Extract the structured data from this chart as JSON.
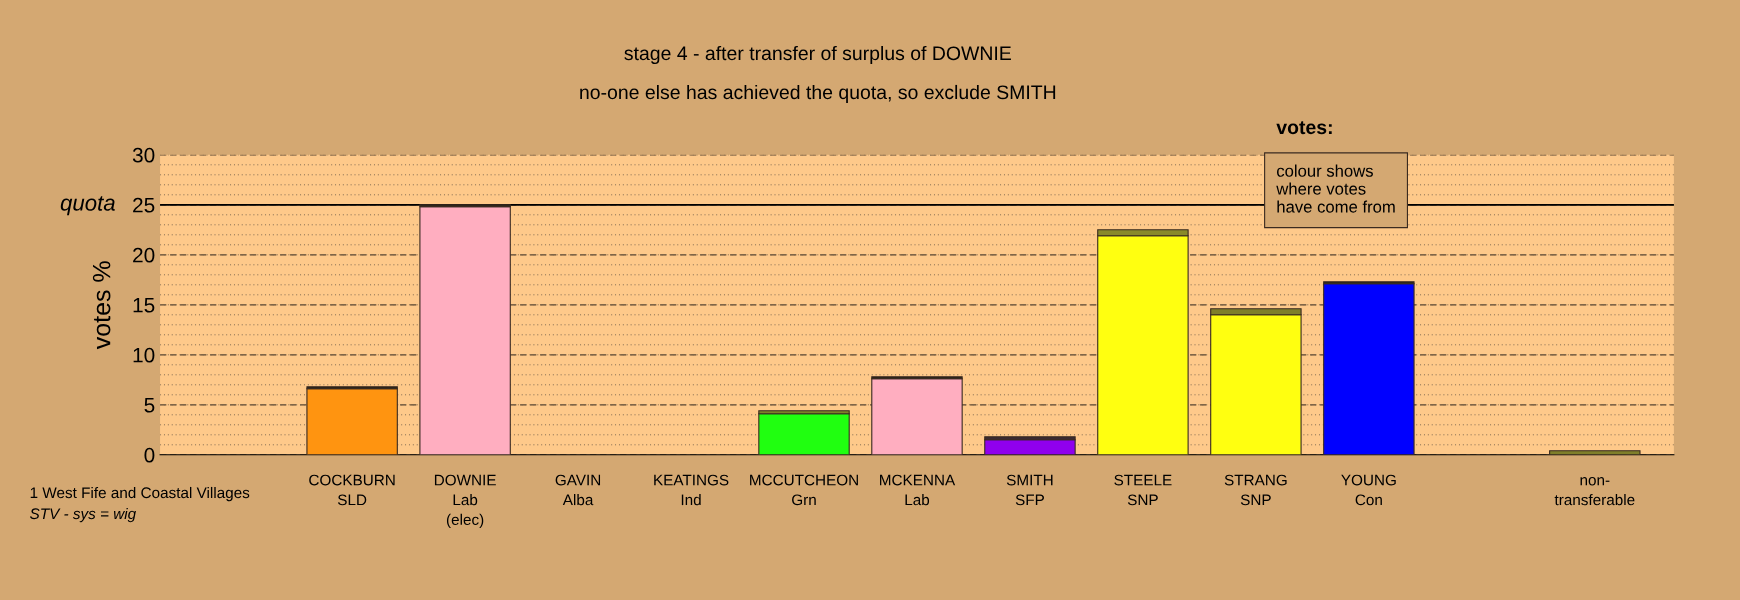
{
  "chart_data": {
    "type": "bar",
    "stacked": true,
    "title": "stage 4 - after transfer of surplus of DOWNIE",
    "subtitle": "no-one else has achieved the quota, so exclude SMITH",
    "ylabel": "votes %",
    "categories": [
      "COCKBURN\nSLD",
      "DOWNIE\nLab\n(elec)",
      "GAVIN\nAlba",
      "KEATINGS\nInd",
      "MCCUTCHEON\nGrn",
      "MCKENNA\nLab",
      "SMITH\nSFP",
      "STEELE\nSNP",
      "STRANG\nSNP",
      "YOUNG\nCon",
      null,
      "non-\ntransferable"
    ],
    "series": [
      {
        "colors": [
          "#ff9410",
          "#ffaec0",
          "#ffaec0",
          "#ffaec0",
          "#20ff10",
          "#ffaec0",
          "#9000ee",
          "#ffff10",
          "#ffff10",
          "#0000ff",
          "#808080",
          "#808080"
        ],
        "values": [
          6.6,
          24.8,
          0,
          0,
          4.1,
          7.6,
          1.5,
          21.9,
          14.0,
          17.1,
          null,
          0
        ]
      },
      {
        "colors": [
          "#2a2418",
          "#2a2418",
          "#2a2418",
          "#2a2418",
          "#7f7f2a",
          "#2a2418",
          "#3a2a30",
          "#8a8a2a",
          "#7f7f2a",
          "#2a2418",
          "#808080",
          "#7f7f2a"
        ],
        "values": [
          0.2,
          0.2,
          0,
          0,
          0.3,
          0.2,
          0.3,
          0.6,
          0.6,
          0.2,
          null,
          0.4
        ]
      }
    ],
    "ylim": [
      0,
      30
    ],
    "yticks": [
      0,
      5,
      10,
      15,
      20,
      25,
      30
    ],
    "grid": "y",
    "ref_lines": [
      {
        "axis": "y",
        "value": 25,
        "label": "quota"
      }
    ],
    "annotations": [
      "votes:",
      "colour shows\nwhere votes\nhave come from",
      "1 West Fife and Coastal Villages",
      "STV - sys = wig"
    ]
  }
}
